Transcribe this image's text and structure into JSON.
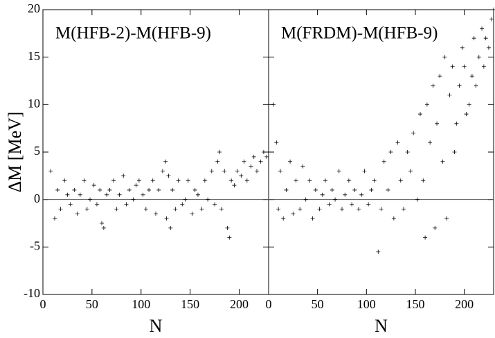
{
  "chart_data": [
    {
      "type": "scatter",
      "title": "M(HFB-2)-M(HFB-9)",
      "xlabel": "N",
      "ylabel": "ΔM [MeV]",
      "xlim": [
        0,
        230
      ],
      "ylim": [
        -10,
        20
      ],
      "xticks": [
        0,
        50,
        100,
        150,
        200
      ],
      "yticks": [
        -10,
        -5,
        0,
        5,
        10,
        15,
        20
      ],
      "hline": 0,
      "color": "#000000",
      "x": [
        8,
        12,
        15,
        18,
        22,
        25,
        28,
        32,
        35,
        38,
        42,
        45,
        48,
        52,
        55,
        58,
        60,
        62,
        65,
        68,
        72,
        75,
        78,
        82,
        85,
        88,
        92,
        95,
        98,
        102,
        105,
        108,
        112,
        115,
        118,
        122,
        125,
        126,
        128,
        130,
        132,
        135,
        138,
        142,
        145,
        148,
        152,
        155,
        158,
        162,
        165,
        168,
        172,
        175,
        178,
        180,
        182,
        185,
        188,
        190,
        192,
        195,
        198,
        202,
        205,
        208,
        212,
        215,
        218,
        222,
        225,
        228
      ],
      "y": [
        3,
        -2,
        1,
        -1,
        2,
        0.5,
        -0.5,
        1,
        -1.5,
        0.5,
        2,
        -1,
        0,
        1.5,
        -0.5,
        1,
        -2.5,
        -3,
        0.5,
        1,
        2,
        -1,
        0.5,
        2.5,
        -0.5,
        1,
        0,
        1.5,
        2,
        0.5,
        -1,
        1,
        2,
        -1.5,
        1,
        3,
        4,
        -2,
        2.5,
        -3,
        1,
        -1,
        2,
        -0.5,
        0,
        2,
        -1.5,
        1,
        0.5,
        -1,
        2,
        0,
        3,
        -0.5,
        4,
        5,
        -1,
        3,
        -3,
        -4,
        2,
        1.5,
        3,
        2.5,
        4,
        2,
        3.5,
        4.5,
        3,
        4,
        5,
        4.5
      ]
    },
    {
      "type": "scatter",
      "title": "M(FRDM)-M(HFB-9)",
      "xlabel": "N",
      "xlim": [
        0,
        230
      ],
      "ylim": [
        -10,
        20
      ],
      "xticks": [
        0,
        50,
        100,
        150,
        200
      ],
      "hline": 0,
      "color": "#000000",
      "x": [
        5,
        8,
        10,
        12,
        15,
        18,
        22,
        25,
        28,
        32,
        35,
        38,
        42,
        45,
        48,
        52,
        55,
        58,
        62,
        65,
        68,
        72,
        75,
        78,
        82,
        85,
        88,
        92,
        95,
        98,
        102,
        105,
        108,
        112,
        115,
        118,
        122,
        125,
        128,
        132,
        135,
        138,
        142,
        145,
        148,
        152,
        155,
        158,
        160,
        162,
        165,
        168,
        170,
        172,
        175,
        178,
        180,
        182,
        185,
        188,
        190,
        192,
        195,
        198,
        200,
        202,
        205,
        208,
        210,
        212,
        215,
        218,
        220,
        222,
        225,
        228,
        230
      ],
      "y": [
        10,
        6,
        -1,
        3,
        -2,
        1,
        4,
        -1.5,
        2,
        -1,
        3.5,
        0,
        2,
        -2,
        1,
        -1,
        0.5,
        2,
        -0.5,
        1,
        0,
        3,
        -1,
        0.5,
        2,
        -0.5,
        1,
        -1,
        0.5,
        3,
        -0.5,
        1,
        2,
        -5.5,
        -1,
        4,
        1,
        5,
        -2,
        6,
        2,
        -1,
        5,
        3,
        7,
        0,
        9,
        2,
        -4,
        10,
        6,
        12,
        -3,
        8,
        13,
        4,
        15,
        -2,
        11,
        14,
        5,
        8,
        12,
        16,
        14,
        9,
        10,
        13,
        17,
        12,
        15,
        18,
        14,
        17,
        16,
        19,
        20
      ]
    }
  ]
}
